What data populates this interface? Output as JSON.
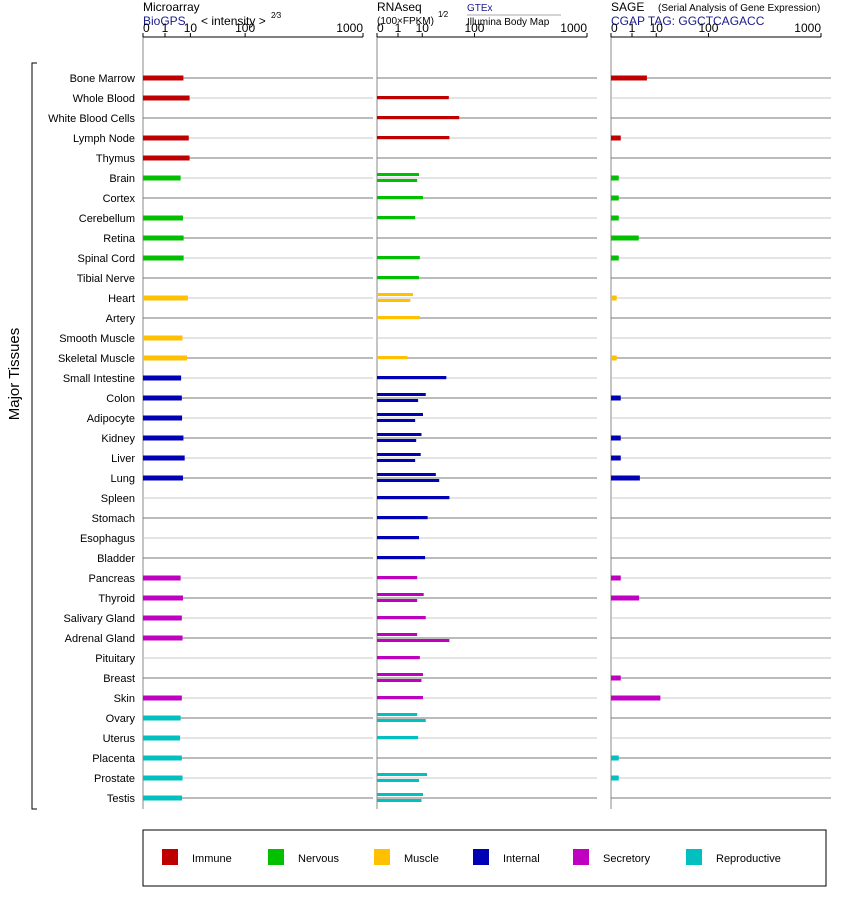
{
  "colors": {
    "Immune": "#c00000",
    "Nervous": "#00c000",
    "Muscle": "#ffc000",
    "Internal": "#0000b4",
    "Secretory": "#c000c0",
    "Reproductive": "#00c0c0"
  },
  "headers": {
    "microarray": {
      "title": "Microarray",
      "source": "BioGPS",
      "unit_text": "< intensity >",
      "unit_exp": "2⁄3"
    },
    "rnaseq": {
      "title": "RNAseq",
      "unit_text": "(100×FPKM)",
      "unit_exp": "1⁄2",
      "source_gtex": "GTEx",
      "source_illumina": "Illumina Body Map"
    },
    "sage": {
      "title": "SAGE",
      "subtitle": "(Serial Analysis of Gene Expression)",
      "tag": "CGAP TAG: GGCTCAGACC"
    }
  },
  "y_axis_label": "Major Tissues",
  "chart_data": {
    "type": "bar",
    "orientation": "horizontal",
    "panels": [
      "Microarray",
      "RNAseq",
      "SAGE"
    ],
    "ticks": [
      0,
      1,
      10,
      100,
      1000
    ],
    "xlim": [
      0,
      1000
    ],
    "tissues": [
      {
        "name": "Bone Marrow",
        "system": "Immune",
        "microarray": 6.2,
        "rnaseq": [],
        "sage": 5.0
      },
      {
        "name": "Whole Blood",
        "system": "Immune",
        "microarray": 9.5,
        "rnaseq": [
          40
        ],
        "sage": null
      },
      {
        "name": "White Blood Cells",
        "system": "Immune",
        "microarray": null,
        "rnaseq": [
          60
        ],
        "sage": null
      },
      {
        "name": "Lymph Node",
        "system": "Immune",
        "microarray": 9.0,
        "rnaseq": [
          41
        ],
        "sage": 0.1
      },
      {
        "name": "Thymus",
        "system": "Immune",
        "microarray": 9.5,
        "rnaseq": [],
        "sage": null
      },
      {
        "name": "Brain",
        "system": "Nervous",
        "microarray": 5.0,
        "rnaseq": [
          8.0,
          7.0
        ],
        "sage": 0.05
      },
      {
        "name": "Cortex",
        "system": "Nervous",
        "microarray": null,
        "rnaseq": [
          10.5
        ],
        "sage": 0.05
      },
      {
        "name": "Cerebellum",
        "system": "Nervous",
        "microarray": 6.0,
        "rnaseq": [
          6.0
        ],
        "sage": 0.05
      },
      {
        "name": "Retina",
        "system": "Nervous",
        "microarray": 6.3,
        "rnaseq": [],
        "sage": 2.3
      },
      {
        "name": "Spinal Cord",
        "system": "Nervous",
        "microarray": 6.3,
        "rnaseq": [
          8.5
        ],
        "sage": 0.05
      },
      {
        "name": "Tibial Nerve",
        "system": "Nervous",
        "microarray": null,
        "rnaseq": [
          8.0
        ],
        "sage": null
      },
      {
        "name": "Heart",
        "system": "Muscle",
        "microarray": 8.5,
        "rnaseq": [
          5.0,
          4.0
        ],
        "sage": 0.02
      },
      {
        "name": "Artery",
        "system": "Muscle",
        "microarray": null,
        "rnaseq": [
          8.5
        ],
        "sage": null
      },
      {
        "name": "Smooth Muscle",
        "system": "Muscle",
        "microarray": 5.8,
        "rnaseq": [],
        "sage": null
      },
      {
        "name": "Skeletal Muscle",
        "system": "Muscle",
        "microarray": 8.0,
        "rnaseq": [
          3.0
        ],
        "sage": 0.02
      },
      {
        "name": "Small Intestine",
        "system": "Internal",
        "microarray": 5.2,
        "rnaseq": [
          36
        ],
        "sage": null
      },
      {
        "name": "Colon",
        "system": "Internal",
        "microarray": 5.5,
        "rnaseq": [
          12.5,
          7.5
        ],
        "sage": 0.1
      },
      {
        "name": "Adipocyte",
        "system": "Internal",
        "microarray": 5.6,
        "rnaseq": [
          10.5,
          6.0
        ],
        "sage": null
      },
      {
        "name": "Kidney",
        "system": "Internal",
        "microarray": 6.2,
        "rnaseq": [
          9.5,
          6.5
        ],
        "sage": 0.1
      },
      {
        "name": "Liver",
        "system": "Internal",
        "microarray": 6.8,
        "rnaseq": [
          9.0,
          6.0
        ],
        "sage": 0.1
      },
      {
        "name": "Lung",
        "system": "Internal",
        "microarray": 6.0,
        "rnaseq": [
          22,
          26
        ],
        "sage": 2.6
      },
      {
        "name": "Spleen",
        "system": "Internal",
        "microarray": null,
        "rnaseq": [
          41
        ],
        "sage": null
      },
      {
        "name": "Stomach",
        "system": "Internal",
        "microarray": null,
        "rnaseq": [
          14
        ],
        "sage": null
      },
      {
        "name": "Esophagus",
        "system": "Internal",
        "microarray": null,
        "rnaseq": [
          8.0
        ],
        "sage": null
      },
      {
        "name": "Bladder",
        "system": "Internal",
        "microarray": null,
        "rnaseq": [
          12
        ],
        "sage": null
      },
      {
        "name": "Pancreas",
        "system": "Secretory",
        "microarray": 5.0,
        "rnaseq": [
          7.0
        ],
        "sage": 0.1
      },
      {
        "name": "Thyroid",
        "system": "Secretory",
        "microarray": 6.0,
        "rnaseq": [
          11,
          7.0
        ],
        "sage": 2.4
      },
      {
        "name": "Salivary Gland",
        "system": "Secretory",
        "microarray": 5.5,
        "rnaseq": [
          12.5
        ],
        "sage": null
      },
      {
        "name": "Adrenal Gland",
        "system": "Secretory",
        "microarray": 5.8,
        "rnaseq": [
          7.0,
          41
        ],
        "sage": null
      },
      {
        "name": "Pituitary",
        "system": "Secretory",
        "microarray": null,
        "rnaseq": [
          8.5
        ],
        "sage": null
      },
      {
        "name": "Breast",
        "system": "Secretory",
        "microarray": null,
        "rnaseq": [
          10.5,
          9.5
        ],
        "sage": 0.1
      },
      {
        "name": "Skin",
        "system": "Secretory",
        "microarray": 5.5,
        "rnaseq": [
          10.5
        ],
        "sage": 13.0
      },
      {
        "name": "Ovary",
        "system": "Reproductive",
        "microarray": 5.0,
        "rnaseq": [
          7.0,
          12.5
        ],
        "sage": null
      },
      {
        "name": "Uterus",
        "system": "Reproductive",
        "microarray": 4.8,
        "rnaseq": [
          7.5
        ],
        "sage": null
      },
      {
        "name": "Placenta",
        "system": "Reproductive",
        "microarray": 5.5,
        "rnaseq": [],
        "sage": 0.05
      },
      {
        "name": "Prostate",
        "system": "Reproductive",
        "microarray": 5.8,
        "rnaseq": [
          13.5,
          8.0
        ],
        "sage": 0.05
      },
      {
        "name": "Testis",
        "system": "Reproductive",
        "microarray": 5.6,
        "rnaseq": [
          10.5,
          9.5
        ],
        "sage": null
      }
    ],
    "legend": [
      "Immune",
      "Nervous",
      "Muscle",
      "Internal",
      "Secretory",
      "Reproductive"
    ],
    "legend_position": "bottom"
  }
}
